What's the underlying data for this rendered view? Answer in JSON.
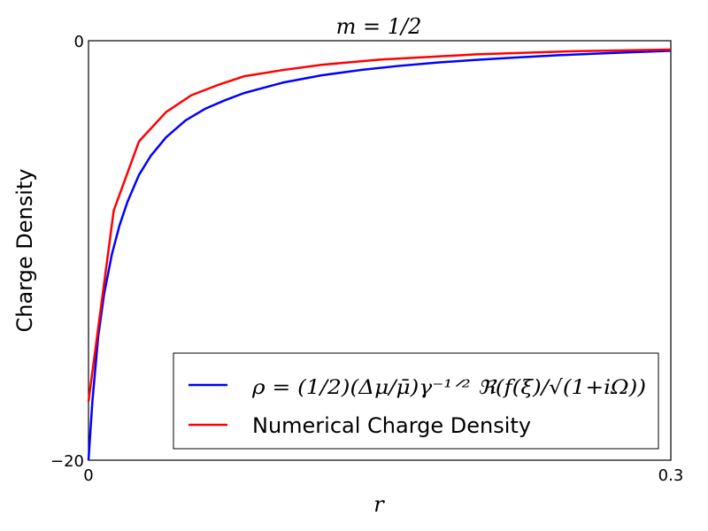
{
  "chart_data": {
    "type": "line",
    "title": "m = 1/2",
    "xlabel": "r",
    "ylabel": "Charge Density",
    "xlim": [
      0,
      0.3
    ],
    "ylim": [
      -20,
      0
    ],
    "xticks": [
      {
        "value": 0,
        "label": "0"
      },
      {
        "value": 0.3,
        "label": "0.3"
      }
    ],
    "yticks": [
      {
        "value": 0,
        "label": "0"
      },
      {
        "value": -20,
        "label": "−20"
      }
    ],
    "grid": false,
    "legend_position": "lower-right",
    "series": [
      {
        "name": "ρ = (1/2)(Δμ/μ̄)γ⁻¹ᐟ² ℜ(f(ξ)/√(1+iΩ))",
        "color": "#0000ff",
        "x": [
          0,
          0.002,
          0.005,
          0.008,
          0.012,
          0.016,
          0.02,
          0.026,
          0.032,
          0.04,
          0.05,
          0.06,
          0.07,
          0.08,
          0.09,
          0.1,
          0.12,
          0.14,
          0.16,
          0.18,
          0.2,
          0.22,
          0.24,
          0.26,
          0.28,
          0.3
        ],
        "y": [
          -20,
          -17.2,
          -14.1,
          -12.1,
          -10.2,
          -8.8,
          -7.7,
          -6.4,
          -5.5,
          -4.6,
          -3.8,
          -3.25,
          -2.85,
          -2.5,
          -2.25,
          -2.0,
          -1.65,
          -1.4,
          -1.2,
          -1.04,
          -0.91,
          -0.8,
          -0.7,
          -0.62,
          -0.55,
          -0.48
        ]
      },
      {
        "name": "Numerical Charge Density",
        "color": "#ff0000",
        "x": [
          0,
          0.013,
          0.026,
          0.04,
          0.053,
          0.067,
          0.08,
          0.1,
          0.12,
          0.15,
          0.2,
          0.25,
          0.3
        ],
        "y": [
          -17.2,
          -8.1,
          -4.8,
          -3.4,
          -2.6,
          -2.1,
          -1.7,
          -1.4,
          -1.15,
          -0.9,
          -0.65,
          -0.5,
          -0.42
        ]
      }
    ]
  }
}
